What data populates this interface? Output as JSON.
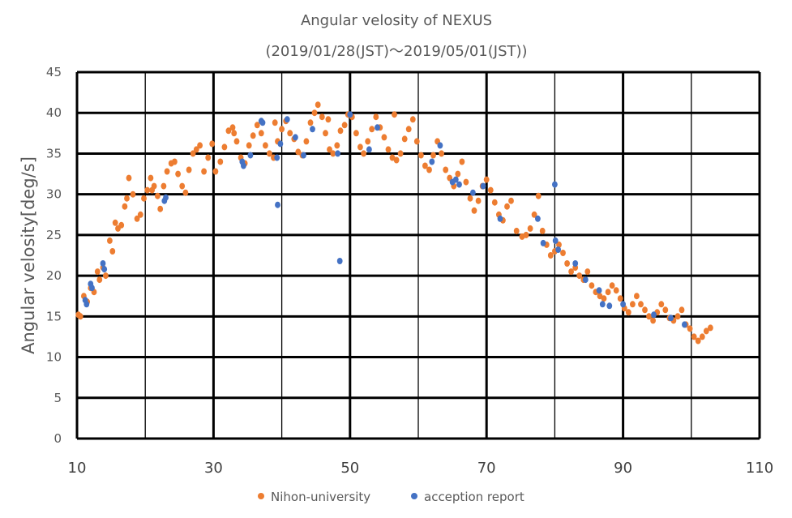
{
  "chart_data": {
    "type": "scatter",
    "title": "Angular velosity of NEXUS",
    "subtitle": "(2019/01/28(JST)～2019/05/01(JST))",
    "xlabel": "",
    "ylabel": "Angular velosity[deg/s]",
    "xlim": [
      10,
      110
    ],
    "ylim": [
      0,
      45
    ],
    "x_ticks": [
      10,
      30,
      50,
      70,
      90,
      110
    ],
    "y_ticks": [
      0,
      5,
      10,
      15,
      20,
      25,
      30,
      35,
      40,
      45
    ],
    "grid": true,
    "legend_position": "bottom",
    "series": [
      {
        "name": "Nihon-university",
        "color": "#ED7D31",
        "points": [
          [
            10.2,
            15.2
          ],
          [
            10.5,
            15.0
          ],
          [
            11.0,
            17.5
          ],
          [
            11.5,
            16.8
          ],
          [
            12.0,
            18.5
          ],
          [
            12.5,
            18.0
          ],
          [
            13.0,
            20.5
          ],
          [
            13.3,
            19.5
          ],
          [
            13.8,
            21.0
          ],
          [
            14.2,
            20.0
          ],
          [
            14.8,
            24.3
          ],
          [
            15.2,
            23.0
          ],
          [
            15.6,
            26.5
          ],
          [
            16.0,
            25.8
          ],
          [
            16.5,
            26.2
          ],
          [
            17.0,
            28.5
          ],
          [
            17.3,
            29.5
          ],
          [
            17.6,
            32.0
          ],
          [
            18.2,
            30.0
          ],
          [
            18.8,
            27.0
          ],
          [
            19.3,
            27.5
          ],
          [
            19.8,
            29.5
          ],
          [
            20.3,
            30.5
          ],
          [
            20.8,
            32.0
          ],
          [
            21.3,
            31.0
          ],
          [
            21.8,
            29.8
          ],
          [
            22.2,
            28.2
          ],
          [
            22.7,
            31.0
          ],
          [
            23.2,
            32.8
          ],
          [
            23.8,
            33.8
          ],
          [
            24.3,
            34.0
          ],
          [
            24.8,
            32.5
          ],
          [
            25.4,
            31.0
          ],
          [
            25.9,
            30.2
          ],
          [
            26.4,
            33.0
          ],
          [
            27.0,
            35.0
          ],
          [
            27.5,
            35.5
          ],
          [
            28.0,
            36.0
          ],
          [
            28.6,
            32.8
          ],
          [
            29.2,
            34.5
          ],
          [
            29.8,
            36.2
          ],
          [
            30.3,
            32.8
          ],
          [
            31.0,
            34.0
          ],
          [
            31.6,
            35.8
          ],
          [
            32.2,
            37.8
          ],
          [
            32.8,
            38.2
          ],
          [
            33.4,
            36.5
          ],
          [
            34.0,
            34.5
          ],
          [
            34.6,
            33.8
          ],
          [
            35.2,
            36.0
          ],
          [
            35.8,
            37.2
          ],
          [
            36.4,
            38.5
          ],
          [
            37.0,
            37.5
          ],
          [
            37.6,
            36.0
          ],
          [
            38.2,
            35.0
          ],
          [
            38.8,
            34.5
          ],
          [
            39.4,
            36.5
          ],
          [
            40.0,
            38.0
          ],
          [
            40.6,
            39.0
          ],
          [
            41.2,
            37.5
          ],
          [
            41.8,
            36.8
          ],
          [
            42.4,
            35.2
          ],
          [
            43.0,
            34.8
          ],
          [
            43.6,
            36.5
          ],
          [
            44.2,
            38.8
          ],
          [
            44.8,
            40.0
          ],
          [
            45.3,
            41.0
          ],
          [
            45.9,
            39.5
          ],
          [
            46.4,
            37.5
          ],
          [
            47.0,
            35.5
          ],
          [
            47.5,
            35.0
          ],
          [
            48.1,
            36.0
          ],
          [
            48.6,
            37.8
          ],
          [
            49.2,
            38.5
          ],
          [
            49.7,
            39.8
          ],
          [
            50.3,
            39.5
          ],
          [
            50.9,
            37.5
          ],
          [
            51.5,
            35.8
          ],
          [
            52.0,
            35.0
          ],
          [
            52.6,
            36.5
          ],
          [
            53.2,
            38.0
          ],
          [
            53.8,
            39.5
          ],
          [
            54.4,
            38.2
          ],
          [
            55.0,
            37.0
          ],
          [
            55.6,
            35.5
          ],
          [
            56.2,
            34.5
          ],
          [
            56.8,
            34.2
          ],
          [
            57.4,
            35.0
          ],
          [
            58.0,
            36.8
          ],
          [
            58.6,
            38.0
          ],
          [
            59.2,
            39.2
          ],
          [
            59.8,
            36.5
          ],
          [
            60.4,
            34.8
          ],
          [
            61.0,
            33.5
          ],
          [
            61.6,
            33.0
          ],
          [
            62.2,
            34.8
          ],
          [
            62.8,
            36.5
          ],
          [
            63.4,
            35.0
          ],
          [
            64.0,
            33.0
          ],
          [
            64.6,
            32.0
          ],
          [
            65.2,
            31.0
          ],
          [
            65.8,
            32.5
          ],
          [
            66.4,
            34.0
          ],
          [
            67.0,
            31.5
          ],
          [
            67.6,
            29.5
          ],
          [
            68.2,
            28.0
          ],
          [
            68.8,
            29.2
          ],
          [
            69.4,
            31.0
          ],
          [
            70.0,
            31.8
          ],
          [
            70.6,
            30.5
          ],
          [
            71.2,
            29.0
          ],
          [
            71.8,
            27.5
          ],
          [
            72.4,
            26.8
          ],
          [
            73.0,
            28.5
          ],
          [
            73.6,
            29.2
          ],
          [
            74.4,
            25.5
          ],
          [
            75.2,
            24.8
          ],
          [
            75.8,
            25.0
          ],
          [
            76.4,
            25.8
          ],
          [
            77.0,
            27.5
          ],
          [
            77.6,
            29.8
          ],
          [
            78.2,
            25.5
          ],
          [
            78.8,
            23.8
          ],
          [
            79.4,
            22.5
          ],
          [
            80.0,
            23.0
          ],
          [
            80.6,
            23.8
          ],
          [
            81.2,
            22.8
          ],
          [
            81.8,
            21.5
          ],
          [
            82.4,
            20.5
          ],
          [
            83.0,
            21.0
          ],
          [
            83.6,
            20.0
          ],
          [
            84.2,
            19.5
          ],
          [
            84.8,
            20.5
          ],
          [
            85.4,
            18.8
          ],
          [
            86.0,
            18.0
          ],
          [
            86.6,
            17.5
          ],
          [
            87.2,
            17.2
          ],
          [
            87.8,
            18.0
          ],
          [
            88.4,
            18.8
          ],
          [
            89.0,
            18.2
          ],
          [
            89.6,
            17.2
          ],
          [
            90.2,
            16.0
          ],
          [
            90.8,
            15.5
          ],
          [
            91.4,
            16.5
          ],
          [
            92.0,
            17.5
          ],
          [
            92.6,
            16.5
          ],
          [
            93.2,
            15.8
          ],
          [
            93.8,
            15.0
          ],
          [
            94.4,
            14.5
          ],
          [
            95.0,
            15.5
          ],
          [
            95.6,
            16.5
          ],
          [
            96.2,
            15.8
          ],
          [
            96.8,
            14.8
          ],
          [
            97.4,
            14.5
          ],
          [
            98.0,
            15.0
          ],
          [
            98.6,
            15.8
          ],
          [
            99.2,
            14.0
          ],
          [
            99.8,
            13.5
          ],
          [
            100.4,
            12.5
          ],
          [
            101.0,
            12.0
          ],
          [
            101.6,
            12.5
          ],
          [
            102.2,
            13.2
          ],
          [
            102.8,
            13.6
          ],
          [
            46.8,
            39.2
          ],
          [
            56.5,
            39.8
          ],
          [
            39.0,
            38.8
          ],
          [
            33.0,
            37.5
          ],
          [
            21.0,
            30.5
          ]
        ]
      },
      {
        "name": "acception report",
        "color": "#4472C4",
        "points": [
          [
            11.2,
            17.0
          ],
          [
            11.4,
            16.5
          ],
          [
            12.0,
            19.0
          ],
          [
            12.2,
            18.5
          ],
          [
            13.8,
            21.5
          ],
          [
            14.0,
            20.8
          ],
          [
            22.8,
            29.2
          ],
          [
            23.0,
            29.6
          ],
          [
            34.2,
            34.0
          ],
          [
            34.4,
            33.5
          ],
          [
            35.4,
            34.8
          ],
          [
            37.0,
            39.0
          ],
          [
            37.2,
            38.8
          ],
          [
            39.3,
            34.5
          ],
          [
            39.4,
            28.7
          ],
          [
            39.8,
            36.2
          ],
          [
            40.8,
            39.2
          ],
          [
            42.0,
            37.0
          ],
          [
            43.2,
            34.8
          ],
          [
            44.5,
            38.0
          ],
          [
            48.2,
            35.0
          ],
          [
            48.5,
            21.8
          ],
          [
            50.0,
            39.8
          ],
          [
            52.8,
            35.5
          ],
          [
            54.0,
            38.2
          ],
          [
            62.0,
            34.0
          ],
          [
            63.2,
            36.0
          ],
          [
            65.0,
            31.5
          ],
          [
            65.5,
            31.8
          ],
          [
            66.0,
            31.2
          ],
          [
            68.0,
            30.2
          ],
          [
            69.5,
            31.0
          ],
          [
            72.0,
            27.0
          ],
          [
            77.5,
            27.0
          ],
          [
            78.3,
            24.0
          ],
          [
            80.0,
            31.2
          ],
          [
            80.1,
            24.3
          ],
          [
            80.5,
            23.2
          ],
          [
            83.0,
            21.5
          ],
          [
            84.5,
            19.5
          ],
          [
            86.5,
            18.2
          ],
          [
            87.0,
            16.5
          ],
          [
            88.0,
            16.3
          ],
          [
            90.0,
            16.5
          ],
          [
            94.5,
            15.2
          ],
          [
            97.0,
            14.8
          ],
          [
            99.0,
            14.0
          ]
        ]
      }
    ]
  }
}
